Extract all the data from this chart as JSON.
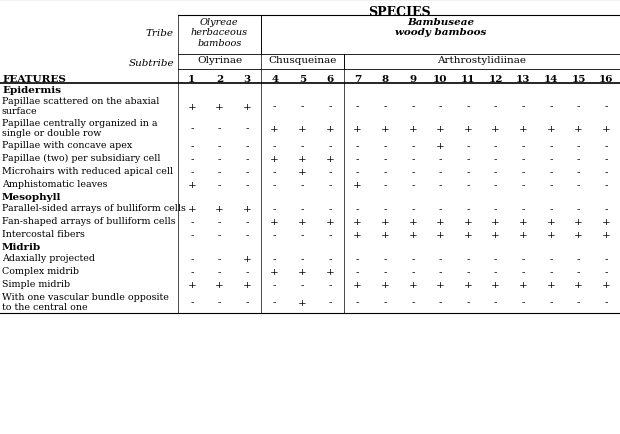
{
  "title": "SPECIES",
  "tribe_label": "Tribe",
  "subtribe_label": "Subtribe",
  "tribe_1": "Olyreae\nherbaceous\nbamboos",
  "tribe_2": "Bambuseae\nwoody bamboos",
  "subtribe_1": "Olyrinae",
  "subtribe_2": "Chusqueinae",
  "subtribe_3": "Arthrostylidiinae",
  "features_label": "FEATURES",
  "species_numbers": [
    "1",
    "2",
    "3",
    "4",
    "5",
    "6",
    "7",
    "8",
    "9",
    "10",
    "11",
    "12",
    "13",
    "14",
    "15",
    "16"
  ],
  "rows": [
    {
      "label": "Epidermis",
      "bold": true,
      "data": null
    },
    {
      "label": "Papillae scattered on the abaxial\nsurface",
      "bold": false,
      "data": [
        "+",
        "+",
        "+",
        "-",
        "-",
        "-",
        "-",
        "-",
        "-",
        "-",
        "-",
        "-",
        "-",
        "-",
        "-",
        "-"
      ]
    },
    {
      "label": "Papillae centrally organized in a\nsingle or double row",
      "bold": false,
      "data": [
        "-",
        "-",
        "-",
        "+",
        "+",
        "+",
        "+",
        "+",
        "+",
        "+",
        "+",
        "+",
        "+",
        "+",
        "+",
        "+"
      ]
    },
    {
      "label": "Papillae with concave apex",
      "bold": false,
      "data": [
        "-",
        "-",
        "-",
        "-",
        "-",
        "-",
        "-",
        "-",
        "-",
        "+",
        "-",
        "-",
        "-",
        "-",
        "-",
        "-"
      ]
    },
    {
      "label": "Papillae (two) per subsidiary cell",
      "bold": false,
      "data": [
        "-",
        "-",
        "-",
        "+",
        "+",
        "+",
        "-",
        "-",
        "-",
        "-",
        "-",
        "-",
        "-",
        "-",
        "-",
        "-"
      ]
    },
    {
      "label": "Microhairs with reduced apical cell",
      "bold": false,
      "data": [
        "-",
        "-",
        "-",
        "-",
        "+",
        "-",
        "-",
        "-",
        "-",
        "-",
        "-",
        "-",
        "-",
        "-",
        "-",
        "-"
      ]
    },
    {
      "label": "Amphistomatic leaves",
      "bold": false,
      "data": [
        "+",
        "-",
        "-",
        "-",
        "-",
        "-",
        "+",
        "-",
        "-",
        "-",
        "-",
        "-",
        "-",
        "-",
        "-",
        "-"
      ]
    },
    {
      "label": "Mesophyll",
      "bold": true,
      "data": null
    },
    {
      "label": "Parallel-sided arrays of bulliform cells",
      "bold": false,
      "data": [
        "+",
        "+",
        "+",
        "-",
        "-",
        "-",
        "-",
        "-",
        "-",
        "-",
        "-",
        "-",
        "-",
        "-",
        "-",
        "-"
      ]
    },
    {
      "label": "Fan-shaped arrays of bulliform cells",
      "bold": false,
      "data": [
        "-",
        "-",
        "-",
        "+",
        "+",
        "+",
        "+",
        "+",
        "+",
        "+",
        "+",
        "+",
        "+",
        "+",
        "+",
        "+"
      ]
    },
    {
      "label": "Intercostal fibers",
      "bold": false,
      "data": [
        "-",
        "-",
        "-",
        "-",
        "-",
        "-",
        "+",
        "+",
        "+",
        "+",
        "+",
        "+",
        "+",
        "+",
        "+",
        "+"
      ]
    },
    {
      "label": "Midrib",
      "bold": true,
      "data": null
    },
    {
      "label": "Adaxially projected",
      "bold": false,
      "data": [
        "-",
        "-",
        "+",
        "-",
        "-",
        "-",
        "-",
        "-",
        "-",
        "-",
        "-",
        "-",
        "-",
        "-",
        "-",
        "-"
      ]
    },
    {
      "label": "Complex midrib",
      "bold": false,
      "data": [
        "-",
        "-",
        "-",
        "+",
        "+",
        "+",
        "-",
        "-",
        "-",
        "-",
        "-",
        "-",
        "-",
        "-",
        "-",
        "-"
      ]
    },
    {
      "label": "Simple midrib",
      "bold": false,
      "data": [
        "+",
        "+",
        "+",
        "-",
        "-",
        "-",
        "+",
        "+",
        "+",
        "+",
        "+",
        "+",
        "+",
        "+",
        "+",
        "+"
      ]
    },
    {
      "label": "With one vascular bundle opposite\nto the central one",
      "bold": false,
      "data": [
        "-",
        "-",
        "-",
        "-",
        "+",
        "-",
        "-",
        "-",
        "-",
        "-",
        "-",
        "-",
        "-",
        "-",
        "-",
        "-"
      ]
    }
  ],
  "background_color": "#ffffff",
  "text_color": "#000000",
  "line_color": "#000000"
}
